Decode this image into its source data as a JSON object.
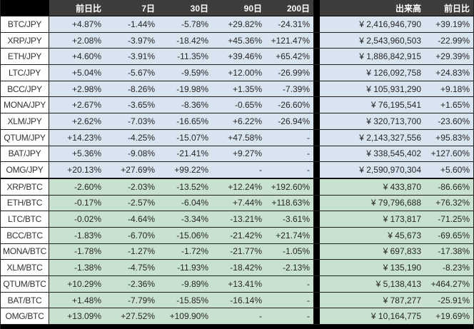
{
  "chart_data": {
    "type": "table",
    "title": "Cryptocurrency pair performance and volume table",
    "columns": [
      "",
      "前日比",
      "7日",
      "30日",
      "90日",
      "200日",
      "出来高",
      "前日比"
    ],
    "column_keys": [
      "pair",
      "day-change",
      "7d-change",
      "30d-change",
      "90d-change",
      "200d-change",
      "volume",
      "volume-day-change"
    ],
    "sections": [
      {
        "id": "jpy-pairs",
        "rows": [
          [
            "BTC/JPY",
            "+4.87%",
            "-1.44%",
            "-5.78%",
            "+29.82%",
            "-24.31%",
            "¥ 2,416,946,790",
            "+39.19%"
          ],
          [
            "XRP/JPY",
            "+2.08%",
            "-3.97%",
            "-18.42%",
            "+45.36%",
            "+121.47%",
            "¥ 2,543,960,503",
            "-22.99%"
          ],
          [
            "ETH/JPY",
            "+4.60%",
            "-3.91%",
            "-11.35%",
            "+39.46%",
            "+65.42%",
            "¥ 1,886,842,915",
            "+29.39%"
          ],
          [
            "LTC/JPY",
            "+5.04%",
            "-5.67%",
            "-9.59%",
            "+12.00%",
            "-26.99%",
            "¥ 126,092,758",
            "+24.83%"
          ],
          [
            "BCC/JPY",
            "+2.98%",
            "-8.26%",
            "-19.98%",
            "+1.35%",
            "-7.39%",
            "¥ 105,931,290",
            "+9.18%"
          ],
          [
            "MONA/JPY",
            "+2.67%",
            "-3.65%",
            "-8.36%",
            "-0.65%",
            "-26.60%",
            "¥ 76,195,541",
            "+1.65%"
          ],
          [
            "XLM/JPY",
            "+2.62%",
            "-7.03%",
            "-16.65%",
            "+6.22%",
            "-26.94%",
            "¥ 320,713,700",
            "-23.60%"
          ],
          [
            "QTUM/JPY",
            "+14.23%",
            "-4.25%",
            "-15.07%",
            "+47.58%",
            "-",
            "¥ 2,143,327,556",
            "+95.83%"
          ],
          [
            "BAT/JPY",
            "+5.36%",
            "-9.08%",
            "-21.41%",
            "+9.27%",
            "-",
            "¥ 338,545,402",
            "+127.60%"
          ],
          [
            "OMG/JPY",
            "+20.13%",
            "+27.69%",
            "+99.22%",
            "-",
            "-",
            "¥ 2,590,970,304",
            "+5.60%"
          ]
        ]
      },
      {
        "id": "btc-pairs",
        "rows": [
          [
            "XRP/BTC",
            "-2.60%",
            "-2.03%",
            "-13.52%",
            "+12.24%",
            "+192.60%",
            "¥ 433,870",
            "-86.66%"
          ],
          [
            "ETH/BTC",
            "-0.17%",
            "-2.57%",
            "-6.04%",
            "+7.44%",
            "+118.63%",
            "¥ 79,796,688",
            "+76.32%"
          ],
          [
            "LTC/BTC",
            "-0.02%",
            "-4.64%",
            "-3.34%",
            "-13.21%",
            "-3.61%",
            "¥ 173,817",
            "-71.25%"
          ],
          [
            "BCC/BTC",
            "-1.83%",
            "-6.70%",
            "-15.06%",
            "-21.42%",
            "+21.74%",
            "¥ 45,673",
            "-69.65%"
          ],
          [
            "MONA/BTC",
            "-1.78%",
            "-1.27%",
            "-1.72%",
            "-21.77%",
            "-1.05%",
            "¥ 697,833",
            "-17.38%"
          ],
          [
            "XLM/BTC",
            "-1.38%",
            "-4.75%",
            "-11.93%",
            "-18.42%",
            "-2.13%",
            "¥ 135,190",
            "-8.23%"
          ],
          [
            "QTUM/BTC",
            "+10.29%",
            "-2.36%",
            "-9.89%",
            "+13.41%",
            "-",
            "¥ 5,138,413",
            "+464.27%"
          ],
          [
            "BAT/BTC",
            "+1.48%",
            "-7.79%",
            "-15.85%",
            "-16.14%",
            "-",
            "¥ 787,277",
            "-25.91%"
          ],
          [
            "OMG/BTC",
            "+13.09%",
            "+27.52%",
            "+109.90%",
            "-",
            "-",
            "¥ 10,164,775",
            "+19.69%"
          ]
        ]
      }
    ],
    "layout": {
      "grid": "off",
      "section_divider_column_after": "200日"
    }
  },
  "colors": {
    "header_bg": "#3d3d3d",
    "header_text": "#ffffff",
    "corner_and_divider": "#000000",
    "jpy_row_bg": "#d9e4f1",
    "btc_row_bg": "#c9e2d0",
    "row_line": "#1f1f1f",
    "text": "#262626"
  }
}
